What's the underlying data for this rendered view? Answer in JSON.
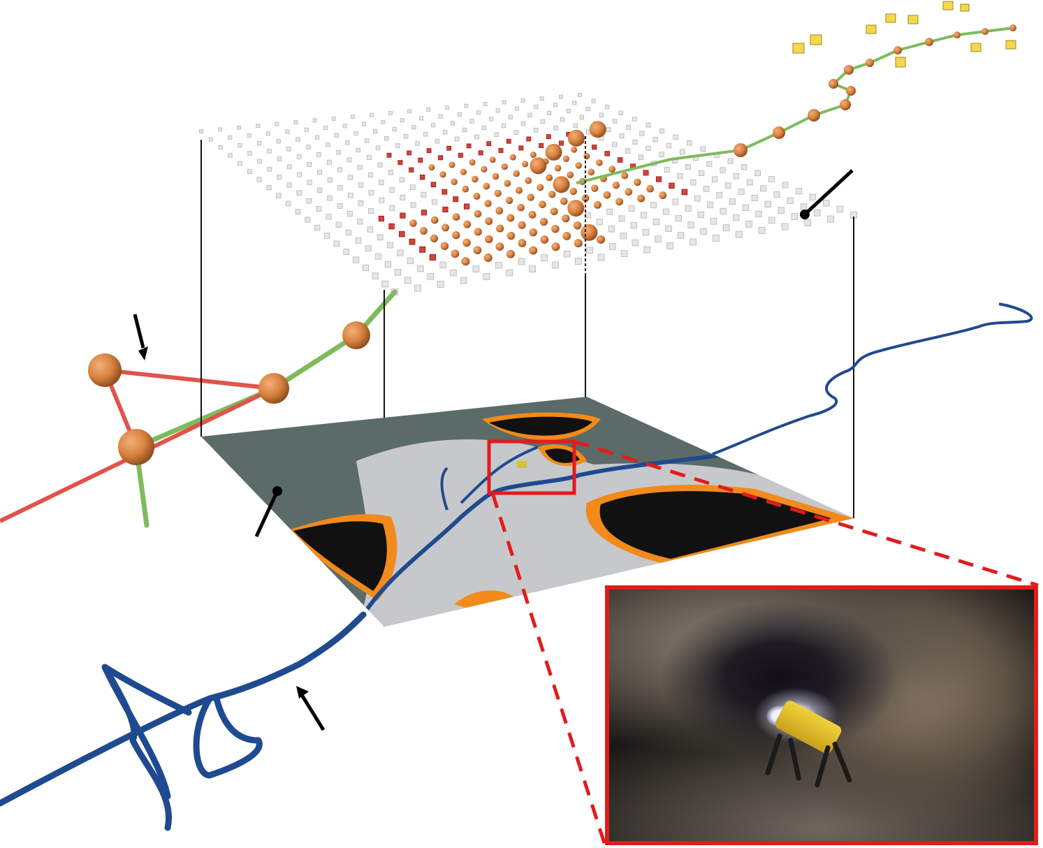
{
  "figure": {
    "description_free": true,
    "colors": {
      "background": "#ffffff",
      "graph_node": "#d9813f",
      "traversable_edge": "#7dbb5c",
      "blocked_edge": "#e0544a",
      "lidar_path": "#1f4a8f",
      "map_unknown": "#5b6b68",
      "map_free": "#c7c8cb",
      "map_obstacle": "#111111",
      "map_inflation": "#f2a02c",
      "inset_border": "#e31b1b",
      "frontier_cube": "#f4d84a",
      "grid_cube": "#e6e6e6"
    },
    "icons": [
      "arrow-icon",
      "pointer-line-icon",
      "robot-icon"
    ]
  }
}
